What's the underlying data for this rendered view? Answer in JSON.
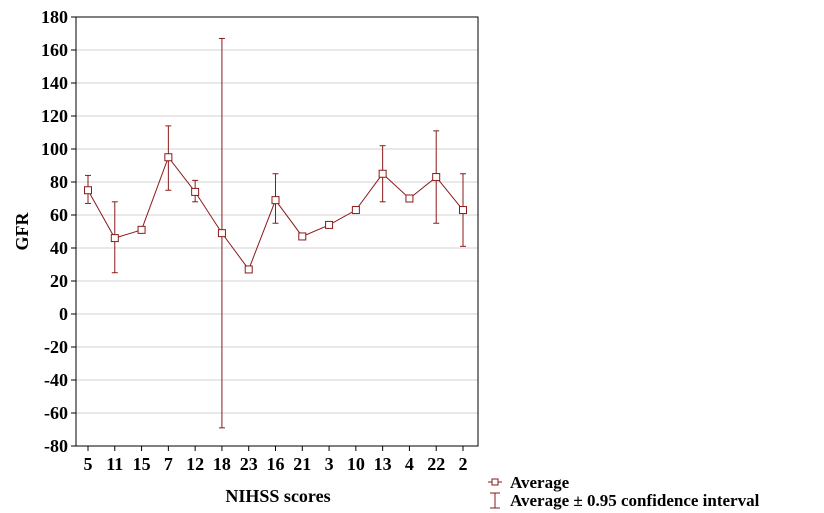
{
  "chart_data": {
    "type": "line",
    "xlabel": "NIHSS scores",
    "ylabel": "GFR",
    "ylim": [
      -80,
      180
    ],
    "y_ticks": [
      -80,
      -60,
      -40,
      -20,
      0,
      20,
      40,
      60,
      80,
      100,
      120,
      140,
      160,
      180
    ],
    "grid": "horizontal",
    "categories": [
      "5",
      "11",
      "15",
      "7",
      "12",
      "18",
      "23",
      "16",
      "21",
      "3",
      "10",
      "13",
      "4",
      "22",
      "2"
    ],
    "series": [
      {
        "name": "Average",
        "values": [
          75,
          46,
          51,
          95,
          74,
          49,
          27,
          69,
          47,
          54,
          63,
          85,
          70,
          83,
          63
        ],
        "ci_low": [
          67,
          25,
          51,
          75,
          68,
          -69,
          27,
          55,
          47,
          54,
          63,
          68,
          70,
          55,
          41
        ],
        "ci_high": [
          84,
          68,
          51,
          114,
          81,
          167,
          27,
          85,
          47,
          54,
          63,
          102,
          70,
          111,
          85
        ]
      }
    ],
    "legend": {
      "placement": "bottom-right",
      "entries": [
        "Average",
        "Average ± 0.95 confidence interval"
      ]
    },
    "colors": {
      "series": "#8b1a1a",
      "grid": "#d3d3d3",
      "axis": "#000000"
    }
  }
}
